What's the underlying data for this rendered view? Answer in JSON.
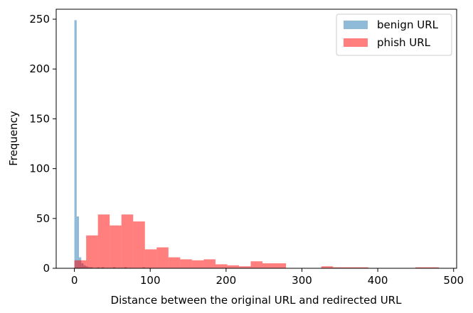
{
  "chart_data": {
    "type": "bar",
    "title": "",
    "xlabel": "Distance between the original URL and redirected URL",
    "ylabel": "Frequency",
    "xlim": [
      -24,
      504
    ],
    "ylim": [
      0,
      260
    ],
    "xticks": [
      0,
      100,
      200,
      300,
      400,
      500
    ],
    "yticks": [
      0,
      50,
      100,
      150,
      200,
      250
    ],
    "grid": false,
    "legend": {
      "position": "top-right"
    },
    "series": [
      {
        "name": "benign URL",
        "color": "#1f77b4",
        "alpha": 0.5,
        "bin_width": 3,
        "bins": [
          {
            "x0": 0,
            "y": 249
          },
          {
            "x0": 3,
            "y": 52
          },
          {
            "x0": 6,
            "y": 11
          },
          {
            "x0": 9,
            "y": 5
          },
          {
            "x0": 12,
            "y": 3
          },
          {
            "x0": 15,
            "y": 2
          },
          {
            "x0": 18,
            "y": 1
          },
          {
            "x0": 21,
            "y": 1
          },
          {
            "x0": 30,
            "y": 1
          },
          {
            "x0": 36,
            "y": 1
          },
          {
            "x0": 51,
            "y": 1
          },
          {
            "x0": 66,
            "y": 1
          },
          {
            "x0": 90,
            "y": 1
          }
        ]
      },
      {
        "name": "phish URL",
        "color": "#ff0000",
        "alpha": 0.5,
        "bin_width": 15.5,
        "bins": [
          {
            "x0": 0,
            "y": 8
          },
          {
            "x0": 15.5,
            "y": 33
          },
          {
            "x0": 31,
            "y": 54
          },
          {
            "x0": 46.5,
            "y": 43
          },
          {
            "x0": 62,
            "y": 54
          },
          {
            "x0": 77.5,
            "y": 47
          },
          {
            "x0": 93,
            "y": 19
          },
          {
            "x0": 108.5,
            "y": 21
          },
          {
            "x0": 124,
            "y": 11
          },
          {
            "x0": 139.5,
            "y": 9
          },
          {
            "x0": 155,
            "y": 8
          },
          {
            "x0": 170.5,
            "y": 9
          },
          {
            "x0": 186,
            "y": 4
          },
          {
            "x0": 201.5,
            "y": 3
          },
          {
            "x0": 217,
            "y": 2
          },
          {
            "x0": 232.5,
            "y": 7
          },
          {
            "x0": 248,
            "y": 5
          },
          {
            "x0": 263.5,
            "y": 5
          },
          {
            "x0": 279,
            "y": 0
          },
          {
            "x0": 294.5,
            "y": 0
          },
          {
            "x0": 310,
            "y": 0
          },
          {
            "x0": 325.5,
            "y": 2
          },
          {
            "x0": 341,
            "y": 1
          },
          {
            "x0": 356.5,
            "y": 1
          },
          {
            "x0": 372,
            "y": 1
          },
          {
            "x0": 387.5,
            "y": 0
          },
          {
            "x0": 403,
            "y": 0
          },
          {
            "x0": 418.5,
            "y": 0
          },
          {
            "x0": 434,
            "y": 0
          },
          {
            "x0": 449.5,
            "y": 1
          },
          {
            "x0": 465,
            "y": 1
          }
        ]
      }
    ]
  }
}
